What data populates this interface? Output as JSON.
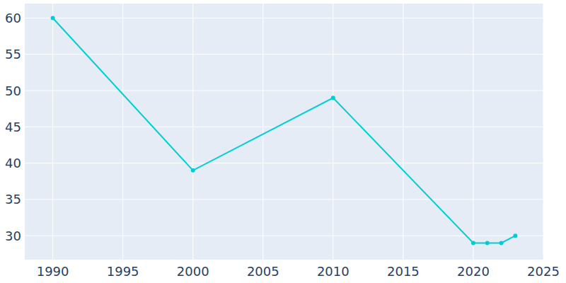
{
  "chart_data": {
    "type": "line",
    "x": [
      1990,
      2000,
      2010,
      2020,
      2021,
      2022,
      2023
    ],
    "series": [
      {
        "values": [
          60,
          39,
          49,
          29,
          29,
          29,
          30
        ],
        "color": "#00cfd0",
        "marker": "circle"
      }
    ],
    "xlim": [
      1988,
      2025
    ],
    "xticks": [
      1990,
      1995,
      2000,
      2005,
      2010,
      2015,
      2020,
      2025
    ],
    "ylim": [
      26.7,
      62
    ],
    "yticks": [
      30,
      35,
      40,
      45,
      50,
      55,
      60
    ],
    "grid": true
  }
}
